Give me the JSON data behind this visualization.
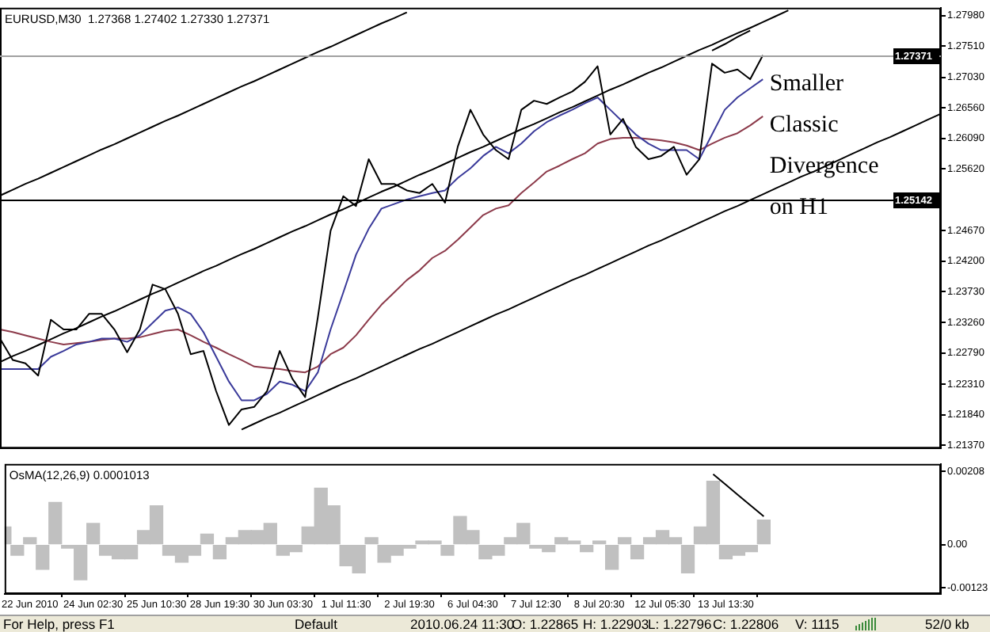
{
  "chart_data": [
    {
      "type": "line",
      "title": "EURUSD,M30  1.27368 1.27402 1.27330 1.27371",
      "marker": "none",
      "tick_labels": "y",
      "categories": [
        null,
        null,
        null,
        null,
        null,
        null,
        null,
        null,
        null,
        null,
        null,
        null,
        null,
        null,
        null,
        null,
        null,
        null,
        null,
        null,
        null,
        null,
        null,
        null,
        null,
        null,
        null,
        null,
        null,
        null,
        null,
        null,
        null,
        null,
        null,
        null,
        null,
        null,
        null,
        null,
        null,
        null,
        null,
        null,
        null,
        null,
        null,
        null,
        null,
        null,
        null,
        null,
        null,
        null,
        null,
        null,
        null,
        null,
        null,
        null,
        null,
        null,
        null,
        null,
        null,
        null,
        null,
        null,
        null,
        null,
        null,
        null,
        null,
        null,
        null
      ],
      "ylim": [
        1.2132,
        1.281
      ],
      "yticks": [
        {
          "value": 1.2137,
          "label": "1.21370"
        },
        {
          "value": 1.2184,
          "label": "1.21840"
        },
        {
          "value": 1.2231,
          "label": "1.22310"
        },
        {
          "value": 1.2279,
          "label": "1.22790"
        },
        {
          "value": 1.2326,
          "label": "1.23260"
        },
        {
          "value": 1.2373,
          "label": "1.23730"
        },
        {
          "value": 1.242,
          "label": "1.24200"
        },
        {
          "value": 1.2467,
          "label": "1.24670"
        },
        {
          "value": 1.2562,
          "label": "1.25620"
        },
        {
          "value": 1.2609,
          "label": "1.26090"
        },
        {
          "value": 1.2656,
          "label": "1.26560"
        },
        {
          "value": 1.2703,
          "label": "1.27030"
        },
        {
          "value": 1.2751,
          "label": "1.27510"
        },
        {
          "value": 1.2798,
          "label": "1.27980"
        }
      ],
      "series": [
        {
          "color": "#000000",
          "values": [
            1.2301,
            1.2268,
            1.2263,
            1.2244,
            1.233,
            1.2315,
            1.2315,
            1.2339,
            1.2339,
            1.2315,
            1.228,
            1.2315,
            1.2384,
            1.2377,
            1.2339,
            1.2277,
            1.2282,
            1.222,
            1.2168,
            1.2192,
            1.2196,
            1.222,
            1.2282,
            1.2239,
            1.2211,
            1.2334,
            1.2467,
            1.252,
            1.2505,
            1.2577,
            1.2539,
            1.2539,
            1.2529,
            1.2525,
            1.2539,
            1.251,
            1.2596,
            1.2653,
            1.2615,
            1.2591,
            1.2577,
            1.2653,
            1.2667,
            1.2662,
            1.2672,
            1.2681,
            1.2696,
            1.272,
            1.2615,
            1.2639,
            1.2596,
            1.2577,
            1.2582,
            1.2596,
            1.2553,
            1.2577,
            1.2724,
            1.271,
            1.2715,
            1.27,
            1.2737,
            null,
            null,
            null,
            null,
            null,
            null,
            null,
            null,
            null,
            null,
            null,
            null,
            null,
            null
          ]
        },
        {
          "color": "#3a3a9a",
          "values": [
            1.2254,
            1.2254,
            1.2254,
            1.2254,
            1.2273,
            1.2282,
            1.2292,
            1.2296,
            1.2301,
            1.2301,
            1.2296,
            1.2306,
            1.2325,
            1.2344,
            1.2349,
            1.2339,
            1.2311,
            1.2273,
            1.2235,
            1.2206,
            1.2206,
            1.2216,
            1.2235,
            1.223,
            1.222,
            1.2249,
            1.2315,
            1.2372,
            1.243,
            1.247,
            1.2501,
            1.2508,
            1.2515,
            1.252,
            1.2525,
            1.2529,
            1.2548,
            1.2563,
            1.2582,
            1.2596,
            1.2586,
            1.2601,
            1.262,
            1.2634,
            1.2644,
            1.2653,
            1.2663,
            1.2672,
            1.2653,
            1.2634,
            1.2615,
            1.2601,
            1.2591,
            1.2591,
            1.2591,
            1.2577,
            1.2615,
            1.2653,
            1.2672,
            1.2686,
            1.27,
            null,
            null,
            null,
            null,
            null,
            null,
            null,
            null,
            null,
            null,
            null,
            null,
            null,
            null
          ]
        },
        {
          "color": "#8c3a4a",
          "values": [
            1.2315,
            1.2311,
            1.2306,
            1.2301,
            1.2296,
            1.2292,
            1.2294,
            1.2296,
            1.2299,
            1.2301,
            1.2301,
            1.2303,
            1.2308,
            1.2313,
            1.2315,
            1.2306,
            1.2296,
            1.2287,
            1.2277,
            1.2268,
            1.2258,
            1.2256,
            1.2254,
            1.2251,
            1.2249,
            1.2258,
            1.2277,
            1.2287,
            1.2306,
            1.233,
            1.2353,
            1.2372,
            1.2391,
            1.2406,
            1.2425,
            1.2436,
            1.2453,
            1.2472,
            1.2491,
            1.2501,
            1.2506,
            1.2525,
            1.2541,
            1.2558,
            1.2567,
            1.2577,
            1.2586,
            1.2601,
            1.2608,
            1.261,
            1.261,
            1.2608,
            1.2606,
            1.2603,
            1.2598,
            1.2591,
            1.2601,
            1.261,
            1.2617,
            1.2629,
            1.2643,
            null,
            null,
            null,
            null,
            null,
            null,
            null,
            null,
            null,
            null,
            null,
            null,
            null,
            null
          ]
        },
        {
          "color": "#000000",
          "values": [
            1.2521,
            1.253,
            1.2539,
            1.2547,
            1.2556,
            1.2565,
            1.2574,
            1.2583,
            1.2592,
            1.26,
            1.2609,
            1.2618,
            1.2627,
            1.2636,
            1.2644,
            1.2653,
            1.2662,
            1.2671,
            1.268,
            1.2689,
            1.2697,
            1.2706,
            1.2715,
            1.2724,
            1.2733,
            1.2742,
            1.275,
            1.2759,
            1.2768,
            1.2777,
            1.2786,
            1.2794,
            1.2803,
            null,
            null,
            null,
            null,
            null,
            null,
            null,
            null,
            null,
            null,
            null,
            null,
            null,
            null,
            null,
            null,
            null,
            null,
            null,
            null,
            null,
            null,
            null,
            null,
            null,
            null,
            null,
            null,
            null,
            null,
            null,
            null,
            null,
            null,
            null,
            null,
            null,
            null,
            null,
            null,
            null,
            null
          ]
        },
        {
          "color": "#000000",
          "values": [
            1.2265,
            1.2274,
            1.2282,
            1.2291,
            1.23,
            1.2309,
            1.2317,
            1.2326,
            1.2335,
            1.2343,
            1.2352,
            1.2361,
            1.237,
            1.2378,
            1.2387,
            1.2396,
            1.2405,
            1.2413,
            1.2422,
            1.2431,
            1.2439,
            1.2448,
            1.2457,
            1.2466,
            1.2474,
            1.2483,
            1.2492,
            1.25,
            1.2509,
            1.2518,
            1.2527,
            1.2535,
            1.2544,
            1.2553,
            1.2561,
            1.257,
            1.2579,
            1.2588,
            1.2596,
            1.2605,
            1.2614,
            1.2623,
            1.2631,
            1.264,
            1.2649,
            1.2657,
            1.2666,
            1.2675,
            1.2684,
            1.2692,
            1.2701,
            1.271,
            1.2718,
            1.2727,
            1.2736,
            1.2745,
            1.2753,
            1.2762,
            1.2771,
            1.2779,
            1.2788,
            1.2797,
            1.2806,
            null,
            null,
            null,
            null,
            null,
            null,
            null,
            null,
            null,
            null,
            null,
            null
          ]
        },
        {
          "color": "#000000",
          "values": [
            null,
            null,
            null,
            null,
            null,
            null,
            null,
            null,
            null,
            null,
            null,
            null,
            null,
            null,
            null,
            null,
            null,
            null,
            null,
            1.2161,
            1.217,
            1.2179,
            1.2187,
            1.2196,
            1.2205,
            1.2214,
            1.2223,
            1.2232,
            1.224,
            1.2249,
            1.2258,
            1.2267,
            1.2276,
            1.2285,
            1.2293,
            1.2302,
            1.2311,
            1.232,
            1.2329,
            1.2338,
            1.2346,
            1.2355,
            1.2364,
            1.2373,
            1.2382,
            1.2391,
            1.2399,
            1.2408,
            1.2417,
            1.2426,
            1.2435,
            1.2444,
            1.2452,
            1.2461,
            1.247,
            1.2479,
            1.2488,
            1.2497,
            1.2505,
            1.2514,
            1.2523,
            1.2532,
            1.2541,
            1.255,
            1.2558,
            1.2567,
            1.2576,
            1.2585,
            1.2594,
            1.2603,
            1.2611,
            1.262,
            1.2629,
            1.2638,
            1.2647
          ]
        },
        {
          "color": "#000000",
          "values": [
            null,
            null,
            null,
            null,
            null,
            null,
            null,
            null,
            null,
            null,
            null,
            null,
            null,
            null,
            null,
            null,
            null,
            null,
            null,
            null,
            null,
            null,
            null,
            null,
            null,
            null,
            null,
            null,
            null,
            null,
            null,
            null,
            null,
            null,
            null,
            null,
            null,
            null,
            null,
            null,
            null,
            null,
            null,
            null,
            null,
            null,
            null,
            null,
            null,
            null,
            null,
            null,
            null,
            null,
            null,
            null,
            1.2744,
            1.2754,
            1.2765,
            1.2775,
            null,
            null,
            null,
            null,
            null,
            null,
            null,
            null,
            null,
            null,
            null,
            null,
            null,
            null,
            null
          ]
        }
      ],
      "ref_lines": [
        {
          "axis": "y",
          "value": 1.27371,
          "label": "1.27371",
          "color": "#a0a0a0"
        },
        {
          "axis": "y",
          "value": 1.25142,
          "label": "1.25142",
          "color": "#000000"
        }
      ],
      "annotations": [
        "Smaller\nClassic\nDivergence\non H1"
      ]
    },
    {
      "type": "bar",
      "title": "OsMA(12,26,9) 0.0001013",
      "categories": [
        null,
        null,
        "22 Jun 2010",
        null,
        null,
        null,
        null,
        "24 Jun 02:30",
        null,
        null,
        null,
        null,
        "25 Jun 10:30",
        null,
        null,
        null,
        null,
        "28 Jun 19:30",
        null,
        null,
        null,
        null,
        "30 Jun 03:30",
        null,
        null,
        null,
        null,
        "1 Jul 11:30",
        null,
        null,
        null,
        null,
        "2 Jul 19:30",
        null,
        null,
        null,
        null,
        "6 Jul 04:30",
        null,
        null,
        null,
        null,
        "7 Jul 12:30",
        null,
        null,
        null,
        null,
        "8 Jul 20:30",
        null,
        null,
        null,
        null,
        "12 Jul 05:30",
        null,
        null,
        null,
        null,
        "13 Jul 13:30",
        null,
        null,
        null,
        null,
        null,
        null,
        null,
        null,
        null,
        null,
        null,
        null,
        null,
        null,
        null,
        null,
        null
      ],
      "ylim": [
        -0.0014,
        0.00229
      ],
      "yticks": [
        {
          "value": 0.00208,
          "label": "0.00208"
        },
        {
          "value": 0,
          "label": "0.00"
        },
        {
          "value": -0.00123,
          "label": "-0.00123"
        }
      ],
      "series": [
        {
          "type": "bar",
          "color": "#c0c0c0",
          "values": [
            0.0005,
            -0.0003,
            0.0002,
            -0.0007,
            0.0012,
            -0.0001,
            -0.001,
            0.0006,
            -0.0003,
            -0.0004,
            -0.0004,
            0.0004,
            0.0011,
            -0.0003,
            -0.0005,
            -0.0003,
            0.0003,
            -0.0004,
            0.0002,
            0.0004,
            0.0004,
            0.0006,
            -0.0003,
            -0.0002,
            0.0005,
            0.0016,
            0.0011,
            -0.0006,
            -0.0008,
            0.0002,
            -0.0005,
            -0.0003,
            -0.0001,
            0.0001,
            0.0001,
            -0.0003,
            0.0008,
            0.0004,
            -0.0004,
            -0.0003,
            0.0002,
            0.0006,
            -0.0001,
            -0.0002,
            0.0002,
            0.0001,
            -0.0002,
            0.0001,
            -0.0007,
            0.0002,
            -0.0004,
            0.0002,
            0.0004,
            0.0002,
            -0.0008,
            0.0005,
            0.0018,
            -0.0004,
            -0.0003,
            -0.0002,
            0.0007,
            null,
            null,
            null,
            null,
            null,
            null,
            null,
            null,
            null,
            null,
            null,
            null,
            null,
            null
          ]
        },
        {
          "type": "line",
          "color": "#000000",
          "values": [
            null,
            null,
            null,
            null,
            null,
            null,
            null,
            null,
            null,
            null,
            null,
            null,
            null,
            null,
            null,
            null,
            null,
            null,
            null,
            null,
            null,
            null,
            null,
            null,
            null,
            null,
            null,
            null,
            null,
            null,
            null,
            null,
            null,
            null,
            null,
            null,
            null,
            null,
            null,
            null,
            null,
            null,
            null,
            null,
            null,
            null,
            null,
            null,
            null,
            null,
            null,
            null,
            null,
            null,
            null,
            null,
            0.002,
            0.0017,
            0.0014,
            0.0011,
            0.0008,
            null,
            null,
            null,
            null,
            null,
            null,
            null,
            null,
            null,
            null,
            null,
            null,
            null,
            null
          ]
        }
      ],
      "annotations": [
        "For Help, press F1",
        "Default",
        "2010.06.24 11:30",
        "O: 1.22865",
        "H: 1.22903",
        "L: 1.22796",
        "C: 1.22806",
        "V: 1115",
        "52/0 kb"
      ]
    }
  ]
}
